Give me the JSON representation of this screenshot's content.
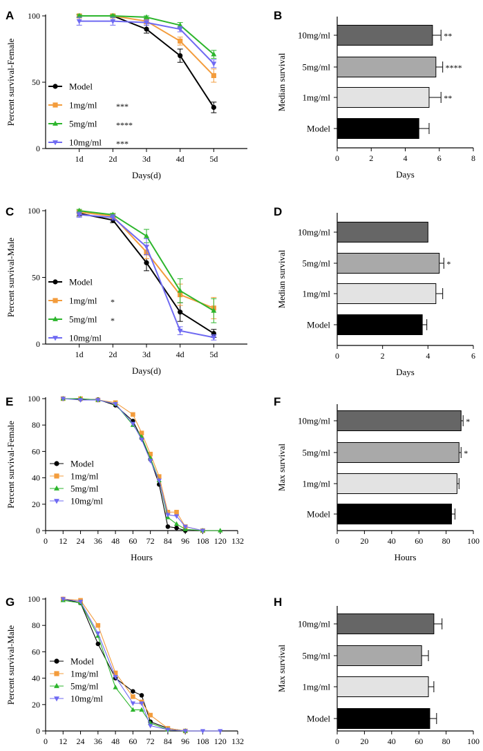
{
  "colors": {
    "model": "#000000",
    "mg1": "#f39c3c",
    "mg5": "#2cb52c",
    "mg10": "#6f6af2",
    "bar_10mg": "#666666",
    "bar_5mg": "#a9a9a9",
    "bar_1mg": "#e3e3e3",
    "bar_model": "#000000"
  },
  "chart_data": [
    {
      "panel": "A",
      "type": "line",
      "ylabel": "Percent survival-Female",
      "xlabel": "Days(d)",
      "categories": [
        "1d",
        "2d",
        "3d",
        "4d",
        "5d"
      ],
      "ylim": [
        0,
        100
      ],
      "yticks": [
        "0",
        "50",
        "100"
      ],
      "series": [
        {
          "name": "Model",
          "sig": "",
          "values": [
            100,
            100,
            90,
            70,
            31
          ],
          "errors": [
            1,
            1,
            3,
            5,
            4
          ]
        },
        {
          "name": "1mg/ml",
          "sig": "***",
          "values": [
            100,
            100,
            96,
            81,
            55
          ],
          "errors": [
            1,
            1,
            2,
            3,
            5
          ]
        },
        {
          "name": "5mg/ml",
          "sig": "****",
          "values": [
            100,
            100,
            99,
            93,
            71
          ],
          "errors": [
            1,
            1,
            1,
            2,
            3
          ]
        },
        {
          "name": "10mg/ml",
          "sig": "***",
          "values": [
            96,
            96,
            95,
            90,
            64
          ],
          "errors": [
            3,
            3,
            2,
            2,
            3
          ]
        }
      ]
    },
    {
      "panel": "B",
      "type": "bar",
      "ylabel": "Median survival",
      "xlabel": "Days",
      "xlim": [
        0,
        8
      ],
      "xticks": [
        "0",
        "2",
        "4",
        "6",
        "8"
      ],
      "categories": [
        "10mg/ml",
        "5mg/ml",
        "1mg/ml",
        "Model"
      ],
      "values": [
        5.6,
        5.8,
        5.4,
        4.8
      ],
      "errors": [
        0.5,
        0.4,
        0.7,
        0.6
      ],
      "sig": [
        "**",
        "****",
        "**",
        ""
      ]
    },
    {
      "panel": "C",
      "type": "line",
      "ylabel": "Percent survival-Male",
      "xlabel": "Days(d)",
      "categories": [
        "1d",
        "2d",
        "3d",
        "4d",
        "5d"
      ],
      "ylim": [
        0,
        100
      ],
      "yticks": [
        "0",
        "50",
        "100"
      ],
      "series": [
        {
          "name": "Model",
          "sig": "",
          "values": [
            98,
            93,
            61,
            24,
            8
          ],
          "errors": [
            2,
            2,
            6,
            7,
            3
          ]
        },
        {
          "name": "1mg/ml",
          "sig": "*",
          "values": [
            99,
            96,
            69,
            37,
            27
          ],
          "errors": [
            1,
            2,
            5,
            8,
            8
          ]
        },
        {
          "name": "5mg/ml",
          "sig": "*",
          "values": [
            100,
            97,
            81,
            40,
            25
          ],
          "errors": [
            1,
            1,
            5,
            9,
            9
          ]
        },
        {
          "name": "10mg/ml",
          "sig": "",
          "values": [
            97,
            95,
            73,
            10,
            5
          ],
          "errors": [
            2,
            2,
            6,
            3,
            2
          ]
        }
      ]
    },
    {
      "panel": "D",
      "type": "bar",
      "ylabel": "Median survival",
      "xlabel": "Days",
      "xlim": [
        0,
        6
      ],
      "xticks": [
        "0",
        "2",
        "4",
        "6"
      ],
      "categories": [
        "10mg/ml",
        "5mg/ml",
        "1mg/ml",
        "Model"
      ],
      "values": [
        4.0,
        4.5,
        4.35,
        3.75
      ],
      "errors": [
        0,
        0.2,
        0.3,
        0.2
      ],
      "sig": [
        "",
        "*",
        "",
        ""
      ]
    },
    {
      "panel": "E",
      "type": "line",
      "ylabel": "Percent survival-Female",
      "xlabel": "Hours",
      "xlim": [
        0,
        132
      ],
      "xticks": [
        "0",
        "12",
        "24",
        "36",
        "48",
        "60",
        "72",
        "84",
        "96",
        "108",
        "120",
        "132"
      ],
      "ylim": [
        0,
        100
      ],
      "yticks": [
        "0",
        "20",
        "40",
        "60",
        "80",
        "100"
      ],
      "series": [
        {
          "name": "Model",
          "x": [
            12,
            24,
            36,
            48,
            60,
            66,
            72,
            78,
            84,
            90,
            96
          ],
          "y": [
            100,
            99.5,
            99.3,
            95,
            83,
            70,
            54,
            35,
            3,
            2,
            0
          ]
        },
        {
          "name": "1mg/ml",
          "x": [
            12,
            24,
            36,
            48,
            60,
            66,
            72,
            78,
            84,
            90,
            96,
            108
          ],
          "y": [
            100,
            100,
            99,
            97,
            88,
            74,
            58,
            41,
            14,
            14,
            3,
            0
          ]
        },
        {
          "name": "5mg/ml",
          "x": [
            12,
            24,
            36,
            48,
            60,
            66,
            72,
            78,
            84,
            90,
            96,
            108,
            120
          ],
          "y": [
            100,
            100,
            99,
            96,
            80,
            71,
            55,
            38,
            10,
            5,
            1,
            0,
            0
          ]
        },
        {
          "name": "10mg/ml",
          "x": [
            12,
            24,
            36,
            48,
            60,
            66,
            72,
            78,
            84,
            90,
            96,
            108
          ],
          "y": [
            100,
            99,
            99,
            96,
            81,
            69,
            53,
            38,
            12,
            11,
            3,
            0
          ]
        }
      ]
    },
    {
      "panel": "F",
      "type": "bar",
      "ylabel": "Max survival",
      "xlabel": "Hours",
      "xlim": [
        0,
        100
      ],
      "xticks": [
        "0",
        "20",
        "40",
        "60",
        "80",
        "100"
      ],
      "categories": [
        "10mg/ml",
        "5mg/ml",
        "1mg/ml",
        "Model"
      ],
      "values": [
        91,
        89.5,
        88,
        84
      ],
      "errors": [
        1.5,
        1.5,
        1.5,
        2.5
      ],
      "sig": [
        "*",
        "*",
        "",
        ""
      ]
    },
    {
      "panel": "G",
      "type": "line",
      "ylabel": "Percent survival-Male",
      "xlabel": "Hours",
      "xlim": [
        0,
        132
      ],
      "xticks": [
        "0",
        "12",
        "24",
        "36",
        "48",
        "60",
        "72",
        "84",
        "96",
        "108",
        "120",
        "132"
      ],
      "ylim": [
        0,
        100
      ],
      "yticks": [
        "0",
        "20",
        "40",
        "60",
        "80",
        "100"
      ],
      "series": [
        {
          "name": "Model",
          "x": [
            12,
            24,
            36,
            48,
            60,
            66,
            72,
            84,
            96
          ],
          "y": [
            100,
            97,
            66,
            40,
            30,
            27,
            7,
            2,
            0
          ]
        },
        {
          "name": "1mg/ml",
          "x": [
            12,
            24,
            36,
            48,
            60,
            66,
            72,
            84,
            96
          ],
          "y": [
            100,
            99,
            80,
            44,
            26,
            22,
            12,
            2,
            0
          ]
        },
        {
          "name": "5mg/ml",
          "x": [
            12,
            24,
            36,
            48,
            60,
            66,
            72,
            84,
            96
          ],
          "y": [
            99,
            97,
            72,
            33,
            16,
            16,
            6,
            1,
            0
          ]
        },
        {
          "name": "10mg/ml",
          "x": [
            12,
            24,
            36,
            48,
            60,
            66,
            72,
            84,
            96,
            108,
            120
          ],
          "y": [
            100,
            98,
            74,
            41,
            21,
            21,
            4,
            1,
            0,
            0,
            0
          ]
        }
      ]
    },
    {
      "panel": "H",
      "type": "bar",
      "ylabel": "Max survival",
      "xlabel": "Hours",
      "xlim": [
        0,
        100
      ],
      "xticks": [
        "0",
        "20",
        "40",
        "60",
        "80",
        "100"
      ],
      "categories": [
        "10mg/ml",
        "5mg/ml",
        "1mg/ml",
        "Model"
      ],
      "values": [
        71,
        62,
        67,
        68
      ],
      "errors": [
        6,
        5,
        4,
        5
      ],
      "sig": [
        "",
        "",
        "",
        ""
      ]
    }
  ]
}
